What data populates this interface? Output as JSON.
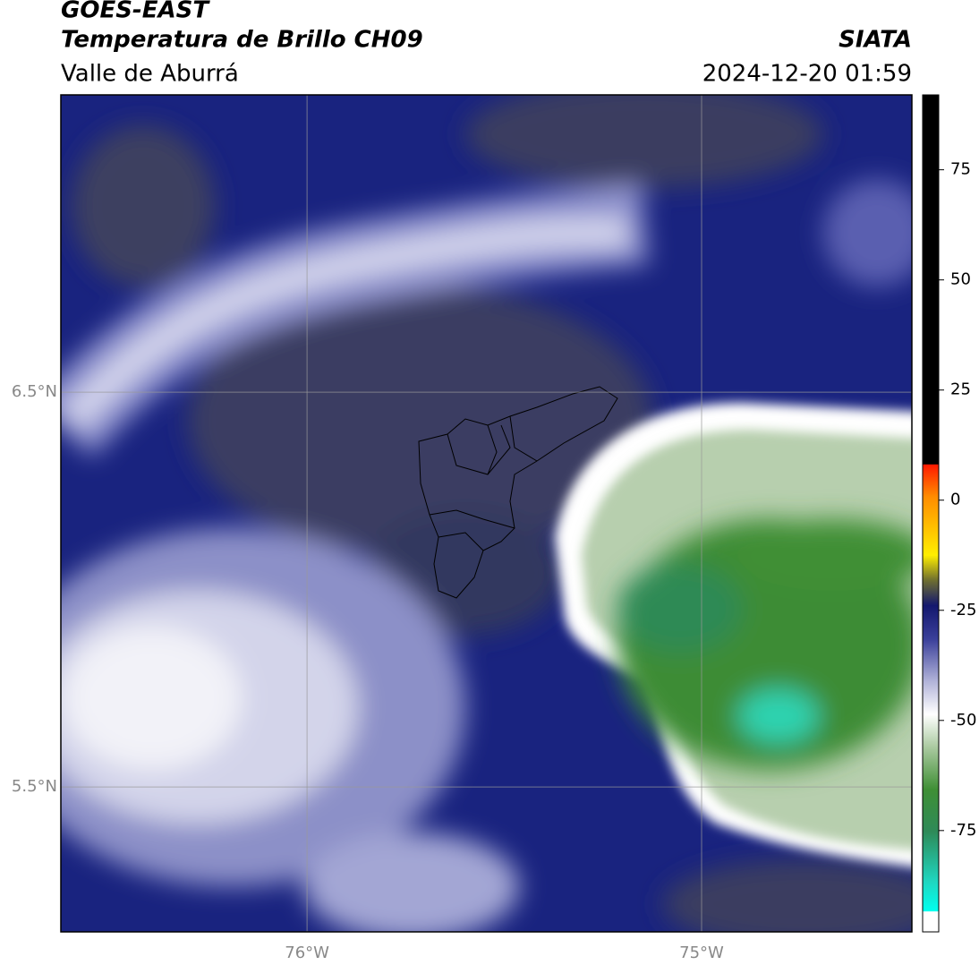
{
  "header": {
    "title": "GOES-EAST",
    "subtitle": "Temperatura de Brillo CH09",
    "region": "Valle de Aburrá",
    "source": "SIATA",
    "datetime": "2024-12-20 01:59"
  },
  "map": {
    "xlim": [
      -76.624,
      -74.467
    ],
    "ylim": [
      5.133,
      7.253
    ],
    "xticks": [
      {
        "value": -76,
        "label": "76°W"
      },
      {
        "value": -75,
        "label": "75°W"
      }
    ],
    "yticks": [
      {
        "value": 5.5,
        "label": "5.5°N"
      },
      {
        "value": 6.5,
        "label": "6.5°N"
      }
    ],
    "grid": true
  },
  "colorbar": {
    "lim": [
      -98,
      92
    ],
    "ticks": [
      -75,
      -50,
      -25,
      0,
      25,
      50,
      75
    ]
  }
}
